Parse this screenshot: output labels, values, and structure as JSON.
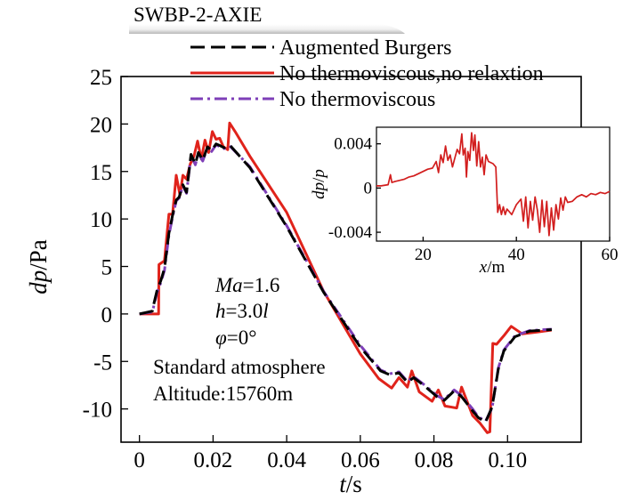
{
  "header_label": "SWBP-2-AXIE",
  "colors": {
    "burgers": "#000000",
    "no_thermo_no_relax": "#e0231b",
    "no_thermo": "#7e3fb8",
    "inset": "#d21e1e"
  },
  "chart_data": [
    {
      "type": "line",
      "xlabel": {
        "italic": "t",
        "unit": "/s"
      },
      "ylabel": {
        "italic": "dp",
        "unit": "/Pa"
      },
      "xlim": [
        -0.005,
        0.12
      ],
      "ylim": [
        -13.5,
        25
      ],
      "xticks": [
        "0",
        "0.02",
        "0.04",
        "0.06",
        "0.08",
        "0.10"
      ],
      "xtick_values": [
        0,
        0.02,
        0.04,
        0.06,
        0.08,
        0.1
      ],
      "yticks": [
        "25",
        "20",
        "15",
        "10",
        "5",
        "0",
        "-5",
        "-10"
      ],
      "ytick_values": [
        25,
        20,
        15,
        10,
        5,
        0,
        -5,
        -10
      ],
      "legend_position": "top",
      "series": [
        {
          "name": "Augmented Burgers",
          "style": "dashed",
          "color": "#000000",
          "x": [
            0,
            0.0035,
            0.004,
            0.0048,
            0.0058,
            0.0068,
            0.008,
            0.009,
            0.01,
            0.0108,
            0.0118,
            0.0128,
            0.014,
            0.0152,
            0.016,
            0.0172,
            0.0185,
            0.0196,
            0.0208,
            0.022,
            0.023,
            0.0245,
            0.03,
            0.04,
            0.05,
            0.06,
            0.0655,
            0.068,
            0.0705,
            0.0728,
            0.0745,
            0.0775,
            0.0808,
            0.0828,
            0.0855,
            0.0875,
            0.0905,
            0.092,
            0.094,
            0.0958,
            0.0975,
            0.099,
            0.102,
            0.106,
            0.112
          ],
          "y": [
            0,
            0.3,
            1.2,
            2.5,
            3.5,
            4.8,
            8.5,
            10.4,
            12,
            12.3,
            13.6,
            12.8,
            16.8,
            15.8,
            17,
            16.2,
            17.6,
            17.2,
            17.9,
            17.7,
            17.5,
            17.8,
            15.4,
            9.2,
            2.3,
            -3.5,
            -6,
            -6.4,
            -6.2,
            -7.2,
            -6.7,
            -7.6,
            -8.7,
            -9.1,
            -8.1,
            -8.7,
            -10.2,
            -10.9,
            -11.4,
            -9.8,
            -5.8,
            -3.9,
            -2.4,
            -1.8,
            -1.65
          ]
        },
        {
          "name": "No thermoviscous,no relaxtion",
          "style": "solid",
          "color": "#e0231b",
          "x": [
            0,
            0.0052,
            0.0053,
            0.0068,
            0.008,
            0.009,
            0.01,
            0.011,
            0.0118,
            0.0128,
            0.0138,
            0.0148,
            0.0158,
            0.0168,
            0.0178,
            0.0188,
            0.0198,
            0.0208,
            0.0218,
            0.0228,
            0.024,
            0.0245,
            0.026,
            0.03,
            0.04,
            0.05,
            0.06,
            0.065,
            0.0685,
            0.0705,
            0.0728,
            0.074,
            0.076,
            0.0795,
            0.0812,
            0.083,
            0.0862,
            0.0875,
            0.0905,
            0.0925,
            0.0945,
            0.0952,
            0.096,
            0.097,
            0.099,
            0.101,
            0.104,
            0.108,
            0.112
          ],
          "y": [
            0,
            0,
            5.2,
            5.6,
            10.5,
            10.5,
            14.6,
            12.5,
            14.6,
            14.2,
            15.8,
            16.6,
            18.2,
            16.3,
            18.3,
            17.0,
            19.2,
            18.4,
            18.5,
            17.6,
            17.3,
            20.1,
            19.2,
            16.6,
            10.7,
            2.4,
            -4.2,
            -6.8,
            -7.8,
            -6.7,
            -7.7,
            -6.0,
            -8.2,
            -9.2,
            -8.0,
            -9.7,
            -9.9,
            -7.7,
            -10.7,
            -11.5,
            -12.5,
            -12.4,
            -3.1,
            -3.2,
            -2.3,
            -1.3,
            -2.1,
            -1.9,
            -1.7
          ]
        },
        {
          "name": "No thermoviscous",
          "style": "dashdot",
          "color": "#7e3fb8",
          "x": [
            0,
            0.0035,
            0.004,
            0.0048,
            0.0058,
            0.0068,
            0.008,
            0.009,
            0.01,
            0.0108,
            0.0118,
            0.0128,
            0.014,
            0.0152,
            0.016,
            0.0172,
            0.0185,
            0.0196,
            0.0208,
            0.022,
            0.023,
            0.0245,
            0.03,
            0.04,
            0.05,
            0.06,
            0.0655,
            0.068,
            0.0705,
            0.0728,
            0.0745,
            0.0775,
            0.0808,
            0.0828,
            0.0855,
            0.0875,
            0.0905,
            0.092,
            0.094,
            0.0958,
            0.0975,
            0.099,
            0.102,
            0.106,
            0.112
          ],
          "y": [
            0,
            0.2,
            1.0,
            2.3,
            3.3,
            4.6,
            8.3,
            10.2,
            11.9,
            12.2,
            13.5,
            12.7,
            16.7,
            15.7,
            16.9,
            16.1,
            17.5,
            17.1,
            17.8,
            17.6,
            17.4,
            17.7,
            15.5,
            9.3,
            2.4,
            -3.3,
            -5.9,
            -6.3,
            -6.1,
            -7.1,
            -6.6,
            -7.5,
            -8.6,
            -9.0,
            -8.0,
            -8.6,
            -10.0,
            -10.8,
            -11.3,
            -9.9,
            -5.7,
            -3.8,
            -2.3,
            -1.75,
            -1.6
          ]
        }
      ],
      "annotations": [
        {
          "italic": "Ma",
          "text": "=1.6"
        },
        {
          "italic": "h",
          "text": "=3.0",
          "tail_italic": "l"
        },
        {
          "italic": "φ",
          "text": "=0°"
        },
        {
          "text": "Standard atmosphere"
        },
        {
          "text": "Altitude:15760m"
        }
      ]
    },
    {
      "type": "line",
      "xlabel": {
        "italic": "x",
        "unit": "/m"
      },
      "ylabel": {
        "italic": "dp",
        "sep": "/",
        "italic2": "p"
      },
      "xlim": [
        10,
        60
      ],
      "ylim": [
        -0.0048,
        0.0055
      ],
      "xticks": [
        "20",
        "40",
        "60"
      ],
      "xtick_values": [
        20,
        40,
        60
      ],
      "yticks": [
        "0.004",
        "0",
        "-0.004"
      ],
      "ytick_values": [
        0.004,
        0,
        -0.004
      ],
      "series": [
        {
          "color": "#d21e1e",
          "x": [
            10,
            11,
            12.5,
            13,
            13.3,
            14,
            15,
            16,
            17,
            18,
            19,
            20,
            21,
            22,
            22.8,
            23.3,
            23.8,
            24.3,
            24.8,
            25.3,
            25.8,
            26.3,
            26.8,
            27.3,
            27.8,
            28.3,
            28.6,
            29.0,
            29.3,
            29.6,
            30.0,
            30.4,
            30.8,
            31.1,
            31.5,
            31.9,
            32.3,
            32.7,
            33.1,
            33.5,
            34,
            35,
            35.6,
            36.0,
            36.4,
            36.8,
            37.2,
            37.6,
            38,
            39,
            40,
            41,
            41.5,
            42,
            42.5,
            43,
            43.5,
            44,
            44.5,
            45,
            45.5,
            46,
            46.5,
            47,
            47.5,
            48,
            48.5,
            49,
            49.5,
            50,
            50.5,
            51,
            52,
            53,
            54,
            55,
            56,
            57,
            58,
            59,
            60
          ],
          "y": [
            0.0002,
            0.0002,
            0.0003,
            0.0012,
            0.0005,
            0.0006,
            0.0007,
            0.0008,
            0.001,
            0.0011,
            0.0013,
            0.0015,
            0.0017,
            0.0018,
            0.0024,
            0.0014,
            0.003,
            0.0023,
            0.0038,
            0.0025,
            0.003,
            0.0019,
            0.0027,
            0.0035,
            0.0031,
            0.0049,
            0.003,
            0.0036,
            0.001,
            0.0033,
            0.0025,
            0.005,
            0.0034,
            0.0048,
            0.002,
            0.0042,
            0.0019,
            0.0028,
            0.0012,
            0.003,
            0.0024,
            0.0022,
            0.0019,
            -0.0022,
            -0.0015,
            -0.0024,
            -0.0017,
            -0.0024,
            -0.0019,
            -0.0024,
            -0.0015,
            -0.001,
            -0.003,
            -0.0008,
            -0.0036,
            -0.0012,
            -0.0029,
            -0.0008,
            -0.002,
            -0.004,
            -0.0011,
            -0.0035,
            -0.0012,
            -0.0043,
            -0.0018,
            -0.0038,
            -0.0015,
            -0.0028,
            -0.0009,
            -0.002,
            -0.0008,
            -0.0013,
            -0.0012,
            -0.0008,
            -0.0006,
            -0.0008,
            -0.0005,
            -0.0006,
            -0.0004,
            -0.0005,
            -0.0003
          ]
        }
      ]
    }
  ]
}
